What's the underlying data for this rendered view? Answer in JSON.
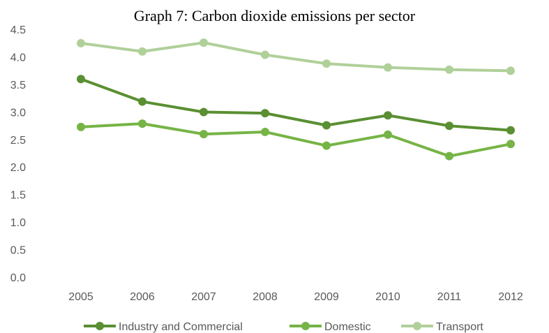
{
  "chart_data": {
    "type": "line",
    "title": "Graph 7: Carbon dioxide emissions per sector",
    "xlabel": "",
    "ylabel": "",
    "categories": [
      "2005",
      "2006",
      "2007",
      "2008",
      "2009",
      "2010",
      "2011",
      "2012"
    ],
    "ylim": [
      0,
      4.5
    ],
    "yticks": [
      "0.0",
      "0.5",
      "1.0",
      "1.5",
      "2.0",
      "2.5",
      "3.0",
      "3.5",
      "4.0",
      "4.5"
    ],
    "grid": false,
    "legend_position": "bottom",
    "series": [
      {
        "name": "Industry and Commercial",
        "color": "#5a8f32",
        "values": [
          3.61,
          3.2,
          3.01,
          2.99,
          2.77,
          2.95,
          2.76,
          2.68
        ]
      },
      {
        "name": "Domestic",
        "color": "#76b446",
        "values": [
          2.74,
          2.8,
          2.61,
          2.65,
          2.4,
          2.6,
          2.21,
          2.43
        ]
      },
      {
        "name": "Transport",
        "color": "#b0d09a",
        "values": [
          4.26,
          4.11,
          4.27,
          4.05,
          3.89,
          3.82,
          3.78,
          3.76
        ]
      }
    ]
  }
}
